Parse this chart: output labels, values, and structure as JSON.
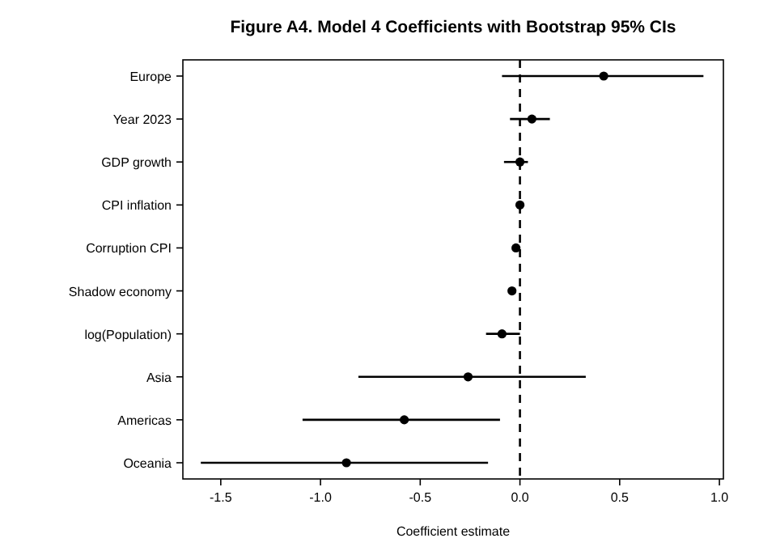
{
  "chart_data": {
    "type": "scatter",
    "orientation": "horizontal",
    "title": "Figure A4. Model 4 Coefficients with Bootstrap 95% CIs",
    "xlabel": "Coefficient estimate",
    "categories": [
      "Europe",
      "Year 2023",
      "GDP growth",
      "CPI inflation",
      "Corruption CPI",
      "Shadow economy",
      "log(Population)",
      "Asia",
      "Americas",
      "Oceania"
    ],
    "values": [
      0.42,
      0.06,
      0.0,
      0.0,
      -0.02,
      -0.04,
      -0.09,
      -0.26,
      -0.58,
      -0.87
    ],
    "errors": [
      [
        -0.09,
        0.92
      ],
      [
        -0.05,
        0.15
      ],
      [
        -0.08,
        0.04
      ],
      null,
      null,
      null,
      [
        -0.17,
        0.0
      ],
      [
        -0.81,
        0.33
      ],
      [
        -1.09,
        -0.1
      ],
      [
        -1.6,
        -0.16
      ]
    ],
    "color": "#000000",
    "marker": "circle",
    "xlim": [
      -1.69,
      1.02
    ],
    "xticks": [
      {
        "value": -1.5,
        "label": "-1.5"
      },
      {
        "value": -1,
        "label": "-1.0"
      },
      {
        "value": -0.5,
        "label": "-0.5"
      },
      {
        "value": 0,
        "label": "0.0"
      },
      {
        "value": 0.5,
        "label": "0.5"
      },
      {
        "value": 1,
        "label": "1.0"
      }
    ],
    "ref_lines": [
      {
        "axis": "x",
        "value": 0,
        "label": null,
        "line_style": "dashed",
        "color": "#000000"
      }
    ],
    "grid": false
  }
}
